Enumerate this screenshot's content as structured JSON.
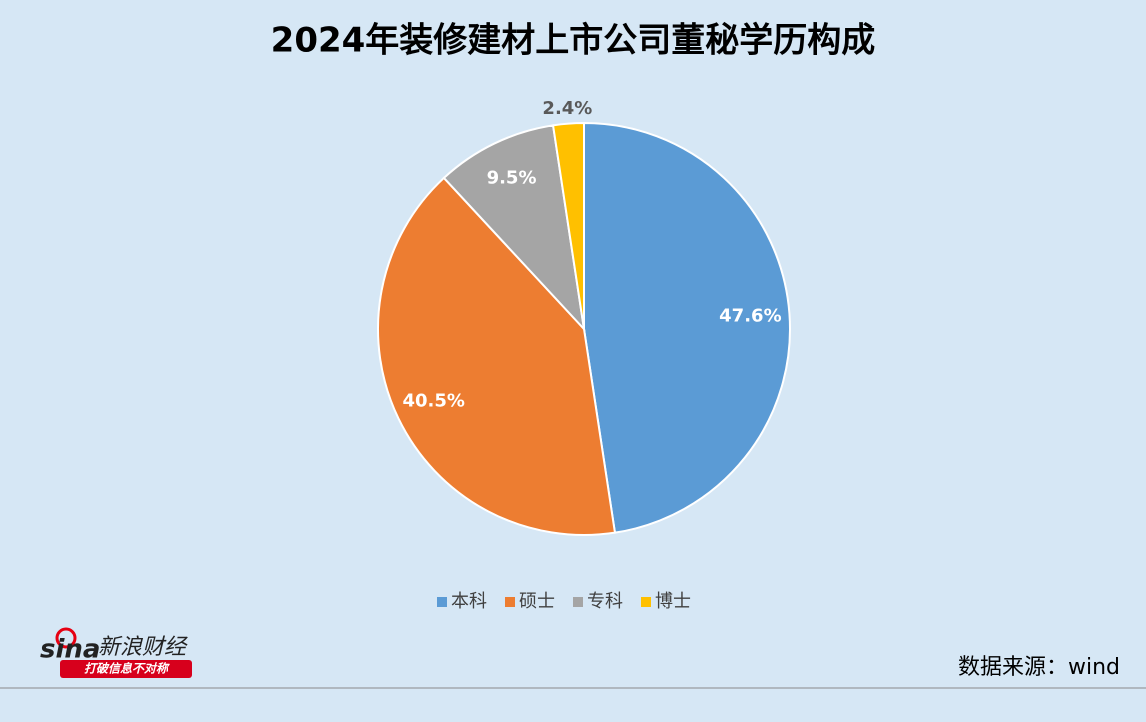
{
  "chart_data": {
    "type": "pie",
    "title": "2024年装修建材上市公司董秘学历构成",
    "categories": [
      "本科",
      "硕士",
      "专科",
      "博士"
    ],
    "values": [
      47.6,
      40.5,
      9.5,
      2.4
    ],
    "value_labels": [
      "47.6%",
      "40.5%",
      "9.5%",
      "2.4%"
    ],
    "colors": [
      "#5b9bd5",
      "#ed7d31",
      "#a5a5a5",
      "#ffc000"
    ],
    "legend": "bottom",
    "source": "数据来源：wind",
    "logo_brand": "sina",
    "logo_name": "新浪财经",
    "logo_slogan": "打破信息不对称"
  }
}
